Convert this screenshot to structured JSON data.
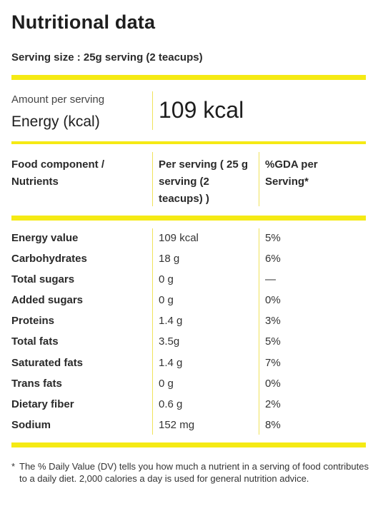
{
  "title": "Nutritional data",
  "serving_size": "Serving size : 25g serving (2 teacups)",
  "amount": {
    "label": "Amount per serving",
    "energy_label": "Energy (kcal)",
    "energy_value": "109 kcal"
  },
  "columns": {
    "nutrient": "Food component / Nutrients",
    "per_serving": "Per serving ( 25 g serving (2 teacups) )",
    "gda": "%GDA per Serving*"
  },
  "rows": [
    {
      "name": "Energy value",
      "value": "109 kcal",
      "gda": "5%"
    },
    {
      "name": "Carbohydrates",
      "value": "18 g",
      "gda": "6%"
    },
    {
      "name": "Total sugars",
      "value": "0 g",
      "gda": "—"
    },
    {
      "name": "Added sugars",
      "value": "0 g",
      "gda": "0%"
    },
    {
      "name": "Proteins",
      "value": "1.4 g",
      "gda": "3%"
    },
    {
      "name": "Total fats",
      "value": "3.5g",
      "gda": "5%"
    },
    {
      "name": "Saturated fats",
      "value": "1.4 g",
      "gda": "7%"
    },
    {
      "name": "Trans fats",
      "value": "0 g",
      "gda": "0%"
    },
    {
      "name": "Dietary fiber",
      "value": "0.6 g",
      "gda": "2%"
    },
    {
      "name": "Sodium",
      "value": "152 mg",
      "gda": "8%"
    }
  ],
  "footnote": {
    "marker": "*",
    "text": "The % Daily Value (DV) tells you how much a nutrient in a serving of food contributes to a daily diet. 2,000 calories a day is used for general nutrition advice."
  },
  "colors": {
    "accent": "#f5ea14",
    "text": "#1e1e1e"
  }
}
